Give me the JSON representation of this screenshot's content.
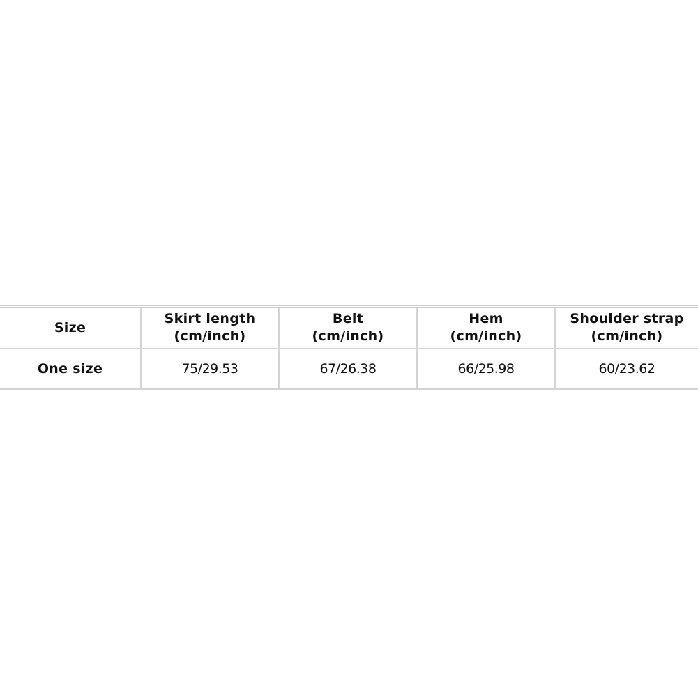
{
  "table": {
    "headers": [
      {
        "title": "Size",
        "unit": ""
      },
      {
        "title": "Skirt length",
        "unit": "(cm/inch)"
      },
      {
        "title": "Belt",
        "unit": "(cm/inch)"
      },
      {
        "title": "Hem",
        "unit": "(cm/inch)"
      },
      {
        "title": "Shoulder strap",
        "unit": "(cm/inch)"
      }
    ],
    "rows": [
      [
        "One size",
        "75/29.53",
        "67/26.38",
        "66/25.98",
        "60/23.62"
      ]
    ]
  }
}
